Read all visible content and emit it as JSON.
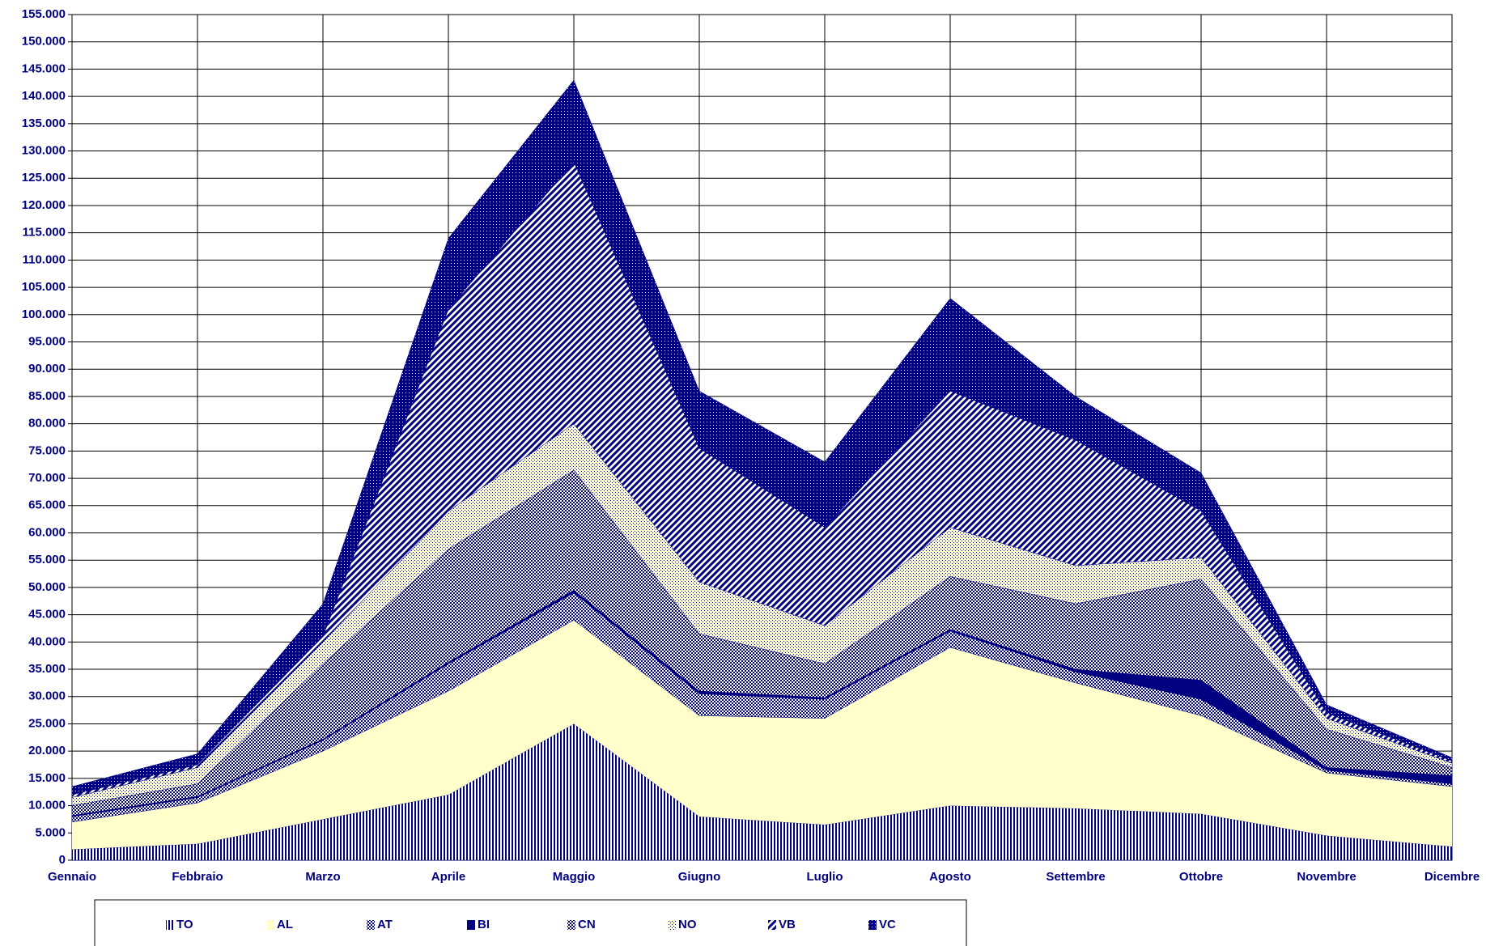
{
  "chart_data": {
    "type": "stacked_area",
    "categories": [
      "Gennaio",
      "Febbraio",
      "Marzo",
      "Aprile",
      "Maggio",
      "Giugno",
      "Luglio",
      "Agosto",
      "Settembre",
      "Ottobre",
      "Novembre",
      "Dicembre"
    ],
    "series": [
      {
        "name": "TO",
        "color": "#000080",
        "values": [
          2000,
          3000,
          7500,
          12000,
          25000,
          8000,
          6500,
          10000,
          9500,
          8500,
          4500,
          2500
        ]
      },
      {
        "name": "AL",
        "color": "#ffffcc",
        "values": [
          5000,
          7500,
          12500,
          19000,
          19000,
          18500,
          19500,
          29000,
          23000,
          18000,
          11500,
          11000
        ]
      },
      {
        "name": "AT",
        "color": "#000080",
        "values": [
          1000,
          1000,
          2000,
          5000,
          5000,
          4000,
          3500,
          3000,
          2000,
          3000,
          500,
          500
        ]
      },
      {
        "name": "BI",
        "color": "#000080",
        "values": [
          200,
          200,
          200,
          300,
          500,
          500,
          300,
          300,
          500,
          3500,
          500,
          1500
        ]
      },
      {
        "name": "CN",
        "color": "#000080",
        "values": [
          1800,
          2300,
          13800,
          20700,
          22000,
          10500,
          6200,
          9700,
          12000,
          18500,
          7000,
          1500
        ]
      },
      {
        "name": "NO",
        "color": "#000080",
        "values": [
          1500,
          3000,
          4000,
          7000,
          8500,
          9500,
          7000,
          9000,
          7000,
          4000,
          2000,
          800
        ]
      },
      {
        "name": "VB",
        "color": "#000080",
        "values": [
          500,
          500,
          1000,
          37000,
          48000,
          24500,
          18000,
          25000,
          23000,
          8500,
          1000,
          400
        ]
      },
      {
        "name": "VC",
        "color": "#000080",
        "values": [
          1500,
          2000,
          6000,
          13000,
          15000,
          10500,
          12000,
          17000,
          8000,
          7000,
          1500,
          600
        ]
      }
    ],
    "ylim": [
      0,
      155000
    ],
    "yticks": [
      0,
      {
        "value": 5000,
        "label": "5.000"
      },
      {
        "value": 10000,
        "label": "10.000"
      },
      {
        "value": 15000,
        "label": "15.000"
      },
      {
        "value": 20000,
        "label": "20.000"
      },
      {
        "value": 25000,
        "label": "25.000"
      },
      {
        "value": 30000,
        "label": "30.000"
      },
      {
        "value": 35000,
        "label": "35.000"
      },
      {
        "value": 40000,
        "label": "40.000"
      },
      {
        "value": 45000,
        "label": "45.000"
      },
      {
        "value": 50000,
        "label": "50.000"
      },
      {
        "value": 55000,
        "label": "55.000"
      },
      {
        "value": 60000,
        "label": "60.000"
      },
      {
        "value": 65000,
        "label": "65.000"
      },
      {
        "value": 70000,
        "label": "70.000"
      },
      {
        "value": 75000,
        "label": "75.000"
      },
      {
        "value": 80000,
        "label": "80.000"
      },
      {
        "value": 85000,
        "label": "85.000"
      },
      {
        "value": 90000,
        "label": "90.000"
      },
      {
        "value": 95000,
        "label": "95.000"
      },
      {
        "value": 100000,
        "label": "100.000"
      },
      {
        "value": 105000,
        "label": "105.000"
      },
      {
        "value": 110000,
        "label": "110.000"
      },
      {
        "value": 115000,
        "label": "115.000"
      },
      {
        "value": 120000,
        "label": "120.000"
      },
      {
        "value": 125000,
        "label": "125.000"
      },
      {
        "value": 130000,
        "label": "130.000"
      },
      {
        "value": 135000,
        "label": "135.000"
      },
      {
        "value": 140000,
        "label": "140.000"
      },
      {
        "value": 145000,
        "label": "145.000"
      },
      {
        "value": 150000,
        "label": "150.000"
      },
      {
        "value": 155000,
        "label": "155.000"
      }
    ],
    "grid": true,
    "legend": "bottom"
  }
}
